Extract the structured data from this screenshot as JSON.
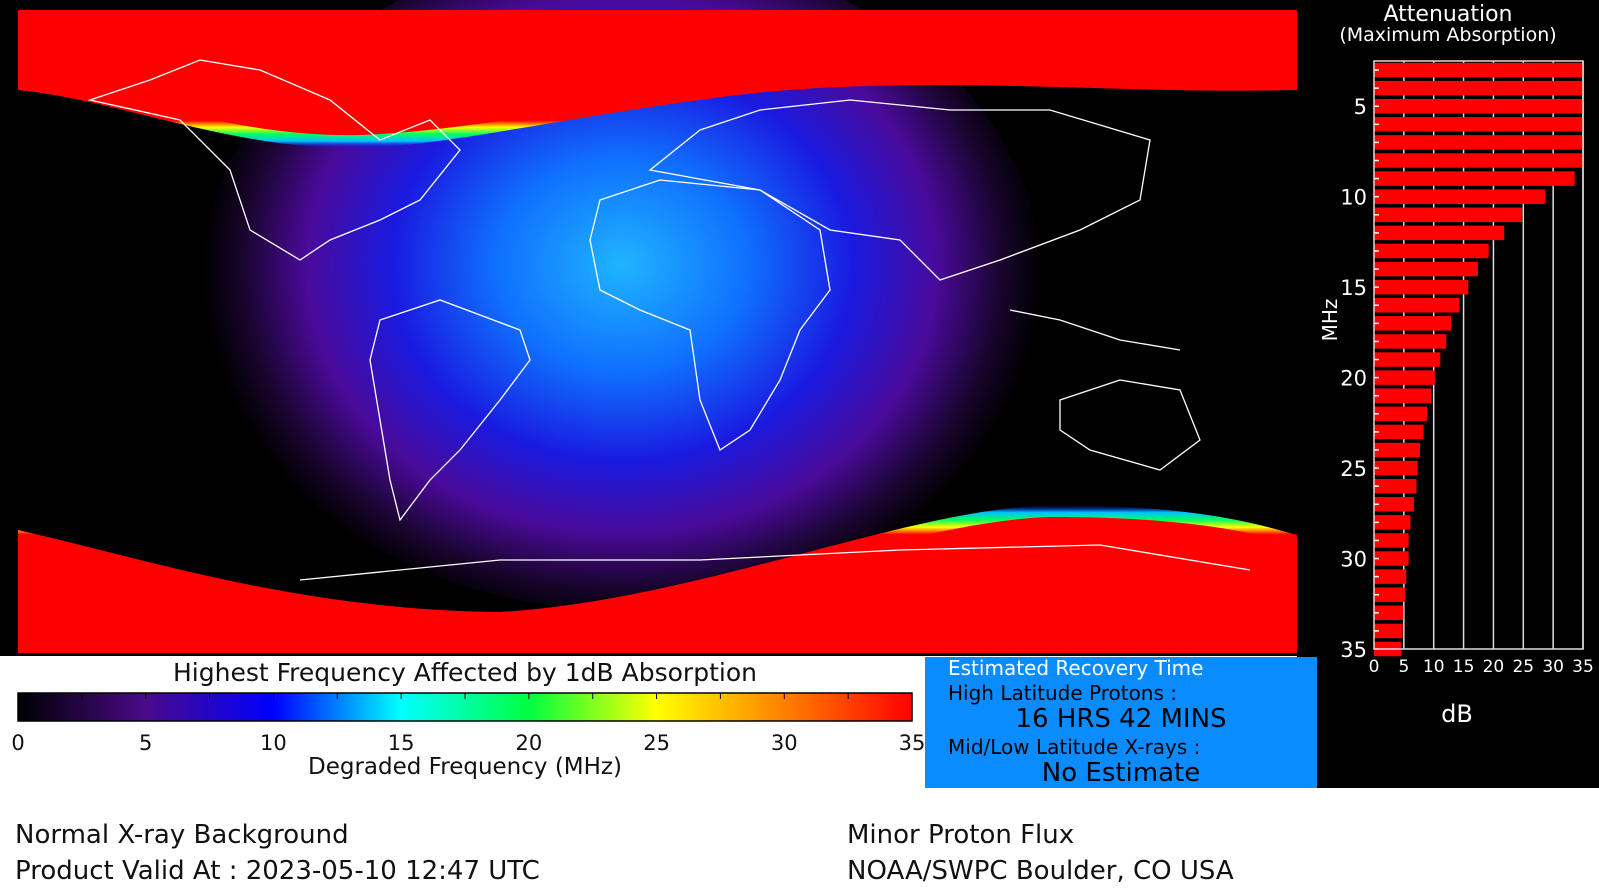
{
  "map": {
    "colors": {
      "background": "#000000",
      "polar": "#ff0000",
      "equatorial_peak": "#1fb4ff",
      "coastline": "#ffffff"
    }
  },
  "colorbar": {
    "title": "Highest Frequency Affected by 1dB Absorption",
    "xlabel": "Degraded Frequency (MHz)",
    "range": [
      0,
      35
    ],
    "ticks": [
      "0",
      "5",
      "10",
      "15",
      "20",
      "25",
      "30",
      "35"
    ],
    "colormap": [
      "#000000",
      "#4a0a8a",
      "#0000ff",
      "#00ffff",
      "#00ff40",
      "#ffff00",
      "#ff8000",
      "#ff0000"
    ]
  },
  "chart_data": {
    "type": "bar",
    "orientation": "horizontal",
    "title": "Attenuation",
    "subtitle": "(Maximum Absorption)",
    "xlabel": "dB",
    "ylabel": "MHz",
    "xlim": [
      0,
      35
    ],
    "ylim": [
      35,
      2.5
    ],
    "xticks": [
      "0",
      "5",
      "10",
      "15",
      "20",
      "25",
      "30",
      "35"
    ],
    "yticks": [
      "5",
      "10",
      "15",
      "20",
      "25",
      "30",
      "35"
    ],
    "grid": "vertical",
    "color": "#ff0000",
    "categories": [
      3,
      4,
      5,
      6,
      7,
      8,
      9,
      10,
      11,
      12,
      13,
      14,
      15,
      16,
      17,
      18,
      19,
      20,
      21,
      22,
      23,
      24,
      25,
      26,
      27,
      28,
      29,
      30,
      31,
      32,
      33,
      34,
      35
    ],
    "values": [
      35,
      35,
      35,
      35,
      35,
      35,
      33.6,
      28.7,
      24.8,
      21.8,
      19.2,
      17.4,
      15.8,
      14.3,
      12.9,
      12.1,
      11.1,
      10.2,
      9.6,
      8.9,
      8.3,
      7.7,
      7.3,
      7.1,
      6.7,
      6.1,
      5.8,
      5.8,
      5.4,
      5.2,
      4.9,
      4.8,
      4.6
    ]
  },
  "recovery": {
    "title": "Estimated Recovery Time",
    "high_lat_label": "High Latitude Protons :",
    "high_lat_value": "16 HRS 42 MINS",
    "mid_low_label": "Mid/Low Latitude X-rays :",
    "mid_low_value": "No Estimate",
    "background": "#0a8cff"
  },
  "footer": {
    "xray_status": "Normal X-ray Background",
    "valid_at": "Product Valid At : 2023-05-10 12:47 UTC",
    "proton_status": "Minor Proton Flux",
    "source": "NOAA/SWPC Boulder, CO USA"
  }
}
